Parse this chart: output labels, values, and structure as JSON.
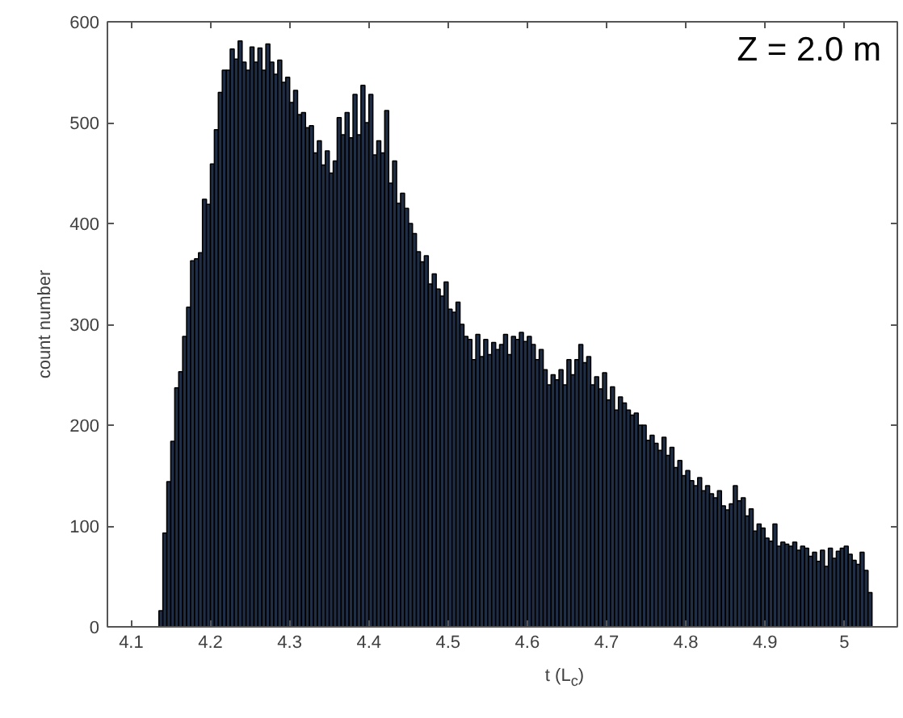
{
  "chart_data": {
    "type": "histogram",
    "xlabel": "t (L$_{c}$)",
    "ylabel": "count number",
    "annotations": [
      "Z = 2.0 m"
    ],
    "color": "#1f2d45",
    "xlim": [
      4.07,
      5.067
    ],
    "ylim": [
      0,
      600
    ],
    "xticks": [
      4.1,
      4.2,
      4.3,
      4.4,
      4.5,
      4.6,
      4.7,
      4.8,
      4.9,
      5
    ],
    "yticks": [
      0,
      100,
      200,
      300,
      400,
      500,
      600
    ],
    "grid": false,
    "bins": [
      4.135,
      4.14,
      4.145,
      4.15,
      4.155,
      4.16,
      4.165,
      4.17,
      4.175,
      4.18,
      4.185,
      4.19,
      4.195,
      4.2,
      4.205,
      4.21,
      4.215,
      4.22,
      4.225,
      4.23,
      4.235,
      4.24,
      4.245,
      4.25,
      4.255,
      4.26,
      4.265,
      4.27,
      4.275,
      4.28,
      4.285,
      4.29,
      4.295,
      4.3,
      4.305,
      4.31,
      4.315,
      4.32,
      4.325,
      4.33,
      4.335,
      4.34,
      4.345,
      4.35,
      4.355,
      4.36,
      4.365,
      4.37,
      4.375,
      4.38,
      4.385,
      4.39,
      4.395,
      4.4,
      4.405,
      4.41,
      4.415,
      4.42,
      4.425,
      4.43,
      4.435,
      4.44,
      4.445,
      4.45,
      4.455,
      4.46,
      4.465,
      4.47,
      4.475,
      4.48,
      4.485,
      4.49,
      4.495,
      4.5,
      4.505,
      4.51,
      4.515,
      4.52,
      4.525,
      4.53,
      4.535,
      4.54,
      4.545,
      4.55,
      4.555,
      4.56,
      4.565,
      4.57,
      4.575,
      4.58,
      4.585,
      4.59,
      4.595,
      4.6,
      4.605,
      4.61,
      4.615,
      4.62,
      4.625,
      4.63,
      4.635,
      4.64,
      4.645,
      4.65,
      4.655,
      4.66,
      4.665,
      4.67,
      4.675,
      4.68,
      4.685,
      4.69,
      4.695,
      4.7,
      4.705,
      4.71,
      4.715,
      4.72,
      4.725,
      4.73,
      4.735,
      4.74,
      4.745,
      4.75,
      4.755,
      4.76,
      4.765,
      4.77,
      4.775,
      4.78,
      4.785,
      4.79,
      4.795,
      4.8,
      4.805,
      4.81,
      4.815,
      4.82,
      4.825,
      4.83,
      4.835,
      4.84,
      4.845,
      4.85,
      4.855,
      4.86,
      4.865,
      4.87,
      4.875,
      4.88,
      4.885,
      4.89,
      4.895,
      4.9,
      4.905,
      4.91,
      4.915,
      4.92,
      4.925,
      4.93,
      4.935,
      4.94,
      4.945,
      4.95,
      4.955,
      4.96,
      4.965,
      4.97,
      4.975,
      4.98,
      4.985,
      4.99,
      4.995,
      5.0,
      5.005,
      5.01,
      5.015,
      5.02,
      5.025,
      5.03,
      5.035
    ],
    "values": [
      16,
      93,
      144,
      184,
      237,
      253,
      288,
      317,
      363,
      365,
      371,
      424,
      419,
      459,
      493,
      530,
      552,
      552,
      573,
      563,
      581,
      560,
      552,
      575,
      560,
      574,
      552,
      578,
      560,
      548,
      562,
      540,
      545,
      520,
      532,
      508,
      510,
      495,
      497,
      470,
      482,
      458,
      472,
      450,
      462,
      505,
      488,
      510,
      485,
      528,
      488,
      537,
      500,
      528,
      468,
      482,
      470,
      512,
      440,
      462,
      420,
      430,
      415,
      400,
      390,
      372,
      362,
      368,
      340,
      350,
      335,
      328,
      342,
      315,
      312,
      322,
      300,
      288,
      285,
      265,
      290,
      268,
      285,
      270,
      282,
      275,
      280,
      290,
      270,
      288,
      285,
      292,
      283,
      288,
      280,
      265,
      275,
      255,
      240,
      250,
      245,
      255,
      240,
      265,
      250,
      265,
      280,
      262,
      268,
      240,
      248,
      236,
      252,
      225,
      238,
      215,
      228,
      222,
      215,
      210,
      212,
      200,
      200,
      185,
      190,
      182,
      175,
      188,
      170,
      178,
      158,
      165,
      150,
      155,
      145,
      140,
      148,
      135,
      140,
      132,
      128,
      135,
      120,
      116,
      122,
      140,
      125,
      128,
      110,
      117,
      95,
      102,
      98,
      88,
      85,
      102,
      80,
      84,
      82,
      80,
      84,
      76,
      80,
      78,
      70,
      74,
      65,
      76,
      60,
      78,
      68,
      75,
      78,
      80,
      72,
      66,
      62,
      74,
      56,
      34
    ]
  }
}
